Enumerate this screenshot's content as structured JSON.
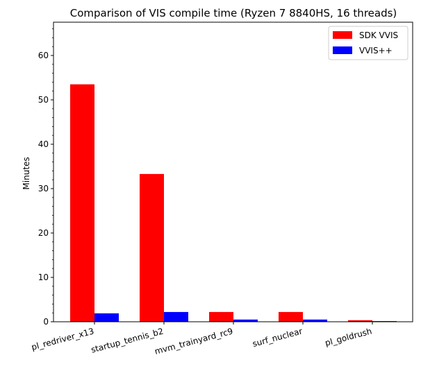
{
  "chart_data": {
    "type": "bar",
    "title": "Comparison of VIS compile time (Ryzen 7 8840HS, 16 threads)",
    "xlabel": "",
    "ylabel": "Minutes",
    "categories": [
      "pl_redriver_x13",
      "startup_tennis_b2",
      "mvm_trainyard_rc9",
      "surf_nuclear",
      "pl_goldrush"
    ],
    "series": [
      {
        "name": "SDK VVIS",
        "color": "#ff0000",
        "values": [
          53.5,
          33.3,
          2.2,
          2.2,
          0.35
        ]
      },
      {
        "name": "VVIS++",
        "color": "#0000ff",
        "values": [
          1.9,
          2.2,
          0.5,
          0.5,
          0.15
        ]
      }
    ],
    "ylim": [
      0,
      67.5
    ],
    "yticks": [
      0,
      10,
      20,
      30,
      40,
      50,
      60
    ],
    "grid": false,
    "legend_position": "top-right"
  }
}
